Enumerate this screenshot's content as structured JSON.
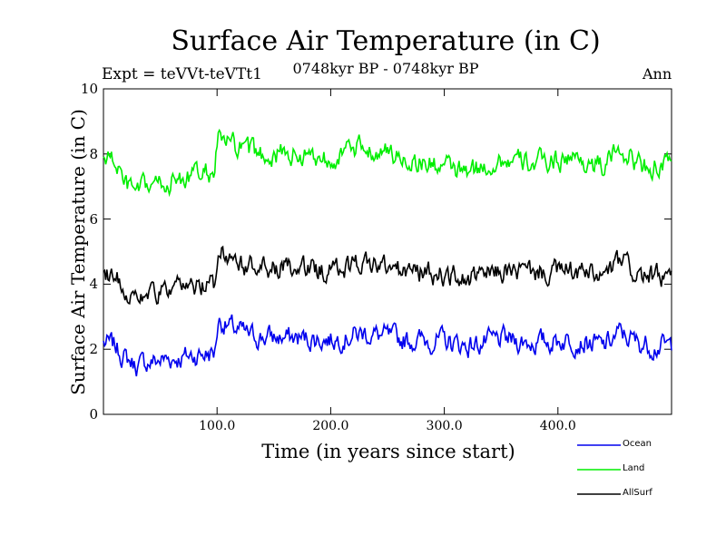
{
  "chart_data": {
    "type": "line",
    "title": "Surface Air Temperature (in C)",
    "subtitle": "0748kyr BP - 0748kyr BP",
    "left_label": "Expt = teVVt-teVTt1",
    "right_label": "Ann",
    "xlabel": "Time (in years since start)",
    "ylabel": "Surface Air Temperature (in C)",
    "xlim": [
      0,
      500
    ],
    "ylim": [
      0,
      10
    ],
    "x_ticks": [
      100,
      200,
      300,
      400
    ],
    "x_tick_labels": [
      "100.0",
      "200.0",
      "300.0",
      "400.0"
    ],
    "y_ticks": [
      0,
      2,
      4,
      6,
      8,
      10
    ],
    "y_tick_labels": [
      "0",
      "2",
      "4",
      "6",
      "8",
      "10"
    ],
    "legend_position": "bottom-right",
    "series": [
      {
        "name": "Ocean",
        "color": "#0000ee",
        "keyframes": [
          [
            0,
            2.2
          ],
          [
            10,
            2.1
          ],
          [
            20,
            1.7
          ],
          [
            30,
            1.5
          ],
          [
            40,
            1.6
          ],
          [
            55,
            1.7
          ],
          [
            70,
            1.75
          ],
          [
            85,
            1.85
          ],
          [
            98,
            1.9
          ],
          [
            101,
            2.9
          ],
          [
            110,
            2.7
          ],
          [
            130,
            2.4
          ],
          [
            160,
            2.35
          ],
          [
            200,
            2.3
          ],
          [
            230,
            2.5
          ],
          [
            260,
            2.3
          ],
          [
            300,
            2.25
          ],
          [
            320,
            2.1
          ],
          [
            350,
            2.3
          ],
          [
            380,
            2.2
          ],
          [
            410,
            2.3
          ],
          [
            440,
            2.1
          ],
          [
            455,
            2.5
          ],
          [
            470,
            2.2
          ],
          [
            485,
            2.1
          ],
          [
            500,
            2.1
          ]
        ]
      },
      {
        "name": "Land",
        "color": "#00ee00",
        "keyframes": [
          [
            0,
            7.9
          ],
          [
            10,
            7.8
          ],
          [
            20,
            7.0
          ],
          [
            30,
            6.8
          ],
          [
            40,
            7.0
          ],
          [
            55,
            7.1
          ],
          [
            70,
            7.25
          ],
          [
            85,
            7.35
          ],
          [
            98,
            7.5
          ],
          [
            101,
            8.5
          ],
          [
            110,
            8.3
          ],
          [
            130,
            8.0
          ],
          [
            160,
            8.0
          ],
          [
            200,
            7.9
          ],
          [
            230,
            8.2
          ],
          [
            260,
            7.9
          ],
          [
            300,
            7.6
          ],
          [
            320,
            7.4
          ],
          [
            350,
            7.8
          ],
          [
            380,
            7.7
          ],
          [
            410,
            7.9
          ],
          [
            440,
            7.6
          ],
          [
            455,
            8.2
          ],
          [
            470,
            7.7
          ],
          [
            485,
            7.6
          ],
          [
            500,
            7.6
          ]
        ]
      },
      {
        "name": "AllSurf",
        "color": "#000000",
        "keyframes": [
          [
            0,
            4.4
          ],
          [
            10,
            4.3
          ],
          [
            20,
            3.8
          ],
          [
            30,
            3.6
          ],
          [
            40,
            3.7
          ],
          [
            55,
            3.75
          ],
          [
            70,
            3.85
          ],
          [
            85,
            3.95
          ],
          [
            98,
            4.0
          ],
          [
            101,
            5.1
          ],
          [
            110,
            4.9
          ],
          [
            130,
            4.5
          ],
          [
            160,
            4.45
          ],
          [
            200,
            4.4
          ],
          [
            230,
            4.7
          ],
          [
            260,
            4.4
          ],
          [
            300,
            4.3
          ],
          [
            320,
            4.1
          ],
          [
            350,
            4.4
          ],
          [
            380,
            4.35
          ],
          [
            410,
            4.4
          ],
          [
            440,
            4.2
          ],
          [
            455,
            4.7
          ],
          [
            470,
            4.3
          ],
          [
            485,
            4.2
          ],
          [
            500,
            4.2
          ]
        ]
      }
    ]
  }
}
